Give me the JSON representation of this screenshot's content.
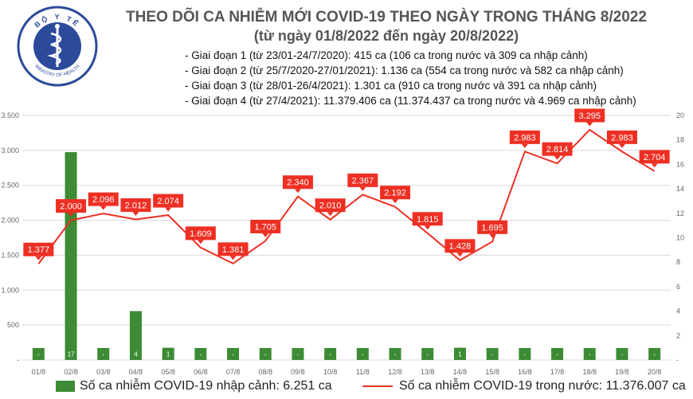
{
  "logo": {
    "top_text": "BỘ Y TẾ",
    "bottom_text": "MINISTRY OF HEALTH"
  },
  "title": "THEO DÕI CA NHIỄM MỚI COVID-19 THEO NGÀY TRONG THÁNG 8/2022",
  "subtitle": "(từ ngày 01/8/2022 đến ngày 20/8/2022)",
  "stages": [
    "- Giai đoạn 1 (từ 23/01-24/7/2020): 415 ca (106 ca trong nước và 309 ca nhập cảnh)",
    "- Giai đoạn 2 (từ 25/7/2020-27/01/2021): 1.136 ca (554 ca trong nước và 582 ca nhập cảnh)",
    "- Giai đoạn 3 (từ 28/01-26/4/2021): 1.301 ca (910 ca trong nước và 391 ca nhập cảnh)",
    "- Giai đoạn 4 (từ 27/4/2021): 11.379.406 ca (11.374.437 ca trong nước và 4.969 ca nhập cảnh)"
  ],
  "colors": {
    "bar": "#3d8b34",
    "line": "#ee2f23",
    "grid": "#d9d9d9",
    "axis_text": "#666666"
  },
  "legend": {
    "bar_label": "Số ca nhiễm COVID-19 nhập cảnh: 6.251 ca",
    "line_label": "Số ca nhiễm COVID-19 trong nước: 11.376.007 ca"
  },
  "chart_data": {
    "type": "bar+line",
    "categories": [
      "01/8",
      "02/8",
      "03/8",
      "04/8",
      "05/8",
      "06/8",
      "07/8",
      "08/8",
      "09/8",
      "10/8",
      "11/8",
      "12/8",
      "13/8",
      "14/8",
      "15/8",
      "16/8",
      "17/8",
      "18/8",
      "19/8",
      "20/8"
    ],
    "left_axis": {
      "ylim": [
        0,
        3500
      ],
      "ticks": [
        0,
        500,
        1000,
        1500,
        2000,
        2500,
        3000,
        3500
      ],
      "tick_labels": [
        "-",
        "500",
        "1.000",
        "1.500",
        "2.000",
        "2.500",
        "3.000",
        "3.500"
      ]
    },
    "right_axis": {
      "ylim": [
        0,
        20
      ],
      "ticks": [
        0,
        2,
        4,
        6,
        8,
        10,
        12,
        14,
        16,
        18,
        20
      ],
      "tick_labels": [
        "-",
        "2",
        "4",
        "6",
        "8",
        "10",
        "12",
        "14",
        "16",
        "18",
        "20"
      ]
    },
    "grid": true,
    "legend_position": "bottom",
    "series": [
      {
        "name": "Số ca nhiễm COVID-19 nhập cảnh: 6.251 ca",
        "type": "bar",
        "axis": "right",
        "values": [
          0,
          17,
          0,
          4,
          1,
          0,
          0,
          0,
          0,
          0,
          0,
          0,
          0,
          1,
          0,
          0,
          0,
          0,
          0,
          0
        ],
        "labels": [
          "-",
          "17",
          "-",
          "4",
          "1",
          "-",
          "-",
          "-",
          "-",
          "-",
          "-",
          "-",
          "-",
          "1",
          "-",
          "-",
          "-",
          "-",
          "-",
          "-"
        ]
      },
      {
        "name": "Số ca nhiễm COVID-19 trong nước: 11.376.007 ca",
        "type": "line",
        "axis": "left",
        "values": [
          1377,
          2000,
          2096,
          2012,
          2074,
          1609,
          1381,
          1705,
          2340,
          2010,
          2367,
          2192,
          1815,
          1428,
          1695,
          2983,
          2814,
          3295,
          2983,
          2704
        ],
        "labels": [
          "1.377",
          "2.000",
          "2.096",
          "2.012",
          "2.074",
          "1.609",
          "1.381",
          "1.705",
          "2.340",
          "2.010",
          "2.367",
          "2.192",
          "1.815",
          "1.428",
          "1.695",
          "2.983",
          "2.814",
          "3.295",
          "2.983",
          "2.704"
        ]
      }
    ]
  }
}
